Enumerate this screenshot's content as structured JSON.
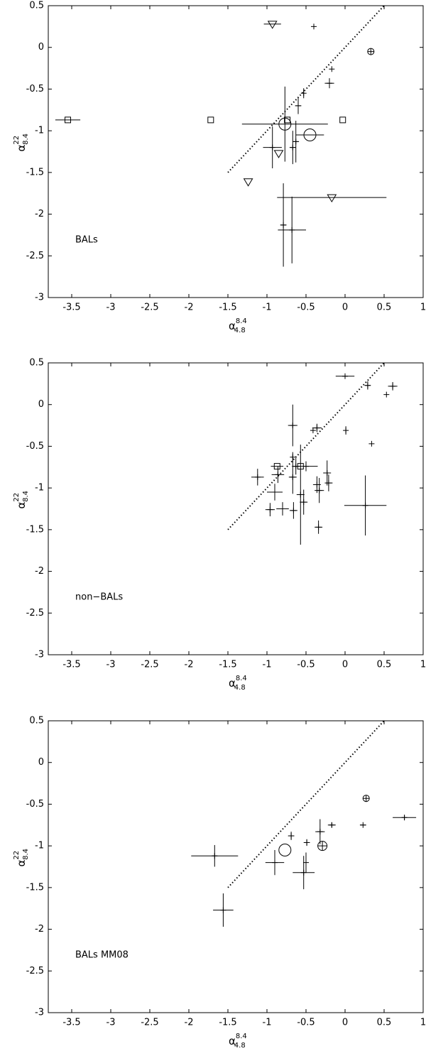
{
  "chart_data": [
    {
      "type": "scatter",
      "annotation": "BALs",
      "xlabel": {
        "symbol": "α",
        "sup": "8.4",
        "sub": "4.8"
      },
      "ylabel": {
        "symbol": "α",
        "sup": "22",
        "sub": "8.4"
      },
      "xlim": [
        -3.8,
        1
      ],
      "ylim": [
        -3,
        0.5
      ],
      "xticks": [
        -3.5,
        -3,
        -2.5,
        -2,
        -1.5,
        -1,
        -0.5,
        0,
        0.5,
        1
      ],
      "yticks": [
        -3,
        -2.5,
        -2,
        -1.5,
        -1,
        -0.5,
        0,
        0.5
      ],
      "reference_line": {
        "x": [
          -1.5,
          0.5
        ],
        "y": [
          -1.5,
          0.5
        ]
      },
      "color": "#000000",
      "points": {
        "x": [
          -3.55,
          -1.72,
          -0.03,
          -0.93,
          -0.4,
          0.33,
          -0.17,
          -0.2,
          -0.53,
          -0.6,
          -0.74,
          -0.77,
          -0.45,
          -0.63,
          -0.67,
          -0.93,
          -0.85,
          -1.24,
          -0.17,
          -0.79,
          -0.68
        ],
        "y": [
          -0.87,
          -0.87,
          -0.87,
          0.28,
          0.25,
          -0.05,
          -0.26,
          -0.43,
          -0.55,
          -0.7,
          -0.87,
          -0.92,
          -1.05,
          -1.13,
          -1.2,
          -1.2,
          -1.27,
          -1.61,
          -1.8,
          -2.13,
          -2.19
        ],
        "xerr": [
          0.16,
          null,
          null,
          0.11,
          null,
          null,
          null,
          0.06,
          null,
          0.04,
          null,
          0.55,
          0.18,
          0.04,
          0.04,
          0.12,
          null,
          null,
          0.7,
          0.04,
          0.18
        ],
        "yerr": [
          null,
          null,
          null,
          null,
          null,
          null,
          null,
          0.06,
          0.06,
          0.1,
          null,
          0.45,
          null,
          0.25,
          0.2,
          0.25,
          null,
          null,
          null,
          0.5,
          0.4
        ],
        "marker": [
          "square",
          "square",
          "square",
          "triangle",
          "plus",
          "circle_small",
          "plus",
          "plus",
          "plus",
          "plus",
          "square",
          "circle_large",
          "circle_large",
          "plus",
          "plus",
          "plus",
          "triangle",
          "triangle",
          "triangle",
          "plus",
          "plus"
        ]
      }
    },
    {
      "type": "scatter",
      "annotation": "non−BALs",
      "xlabel": {
        "symbol": "α",
        "sup": "8.4",
        "sub": "4.8"
      },
      "ylabel": {
        "symbol": "α",
        "sup": "22",
        "sub": "8.4"
      },
      "xlim": [
        -3.8,
        1
      ],
      "ylim": [
        -3,
        0.5
      ],
      "xticks": [
        -3.5,
        -3,
        -2.5,
        -2,
        -1.5,
        -1,
        -0.5,
        0,
        0.5,
        1
      ],
      "yticks": [
        -3,
        -2.5,
        -2,
        -1.5,
        -1,
        -0.5,
        0,
        0.5
      ],
      "reference_line": {
        "x": [
          -1.5,
          0.5
        ],
        "y": [
          -1.5,
          0.5
        ]
      },
      "color": "#000000",
      "points": {
        "x": [
          0,
          0.29,
          0.61,
          0.53,
          -0.67,
          -0.36,
          -0.41,
          0.01,
          0.34,
          -0.87,
          -0.67,
          -0.63,
          -0.57,
          -0.5,
          -0.23,
          -0.21,
          -0.86,
          -1.12,
          -0.67,
          -0.36,
          -0.33,
          -0.9,
          -0.57,
          -0.53,
          -0.96,
          -0.8,
          -0.66,
          -0.34,
          0.26
        ],
        "y": [
          0.34,
          0.23,
          0.22,
          0.12,
          -0.25,
          -0.28,
          -0.31,
          -0.31,
          -0.47,
          -0.74,
          -0.63,
          -0.74,
          -0.74,
          -0.74,
          -0.82,
          -0.94,
          -0.84,
          -0.87,
          -0.87,
          -0.96,
          -1.03,
          -1.05,
          -1.08,
          -1.17,
          -1.26,
          -1.25,
          -1.27,
          -1.47,
          -1.21
        ],
        "xerr": [
          0.12,
          0.04,
          0.06,
          null,
          0.06,
          0.06,
          null,
          null,
          null,
          0.08,
          null,
          0.05,
          null,
          0.15,
          0.05,
          0.05,
          0.08,
          0.08,
          0.05,
          0.05,
          0.06,
          0.1,
          0.05,
          0.05,
          0.06,
          0.08,
          0.05,
          0.05,
          0.27
        ],
        "yerr": [
          null,
          0.05,
          0.05,
          null,
          0.25,
          0.05,
          null,
          0.05,
          null,
          null,
          0.06,
          0.1,
          null,
          0.06,
          0.15,
          0.1,
          0.1,
          0.1,
          0.2,
          0.1,
          0.15,
          0.1,
          0.6,
          0.15,
          0.08,
          0.08,
          0.1,
          0.08,
          0.36
        ],
        "marker": [
          "plus",
          "plus",
          "plus",
          "plus",
          "plus",
          "plus",
          "plus",
          "plus",
          "plus",
          "square",
          "plus",
          "plus",
          "square",
          "plus",
          "plus",
          "plus",
          "plus",
          "plus",
          "plus",
          "plus",
          "plus",
          "plus",
          "plus",
          "plus",
          "plus",
          "plus",
          "plus",
          "plus",
          "plus"
        ]
      }
    },
    {
      "type": "scatter",
      "annotation": "BALs MM08",
      "xlabel": {
        "symbol": "α",
        "sup": "8.4",
        "sub": "4.8"
      },
      "ylabel": {
        "symbol": "α",
        "sup": "22",
        "sub": "8.4"
      },
      "xlim": [
        -3.8,
        1
      ],
      "ylim": [
        -3,
        0.5
      ],
      "xticks": [
        -3.5,
        -3,
        -2.5,
        -2,
        -1.5,
        -1,
        -0.5,
        0,
        0.5,
        1
      ],
      "yticks": [
        -3,
        -2.5,
        -2,
        -1.5,
        -1,
        -0.5,
        0,
        0.5
      ],
      "reference_line": {
        "x": [
          -1.5,
          0.5
        ],
        "y": [
          -1.5,
          0.5
        ]
      },
      "color": "#000000",
      "points": {
        "x": [
          0.27,
          0.76,
          0.23,
          -0.17,
          -0.32,
          -0.69,
          -0.49,
          -0.77,
          -0.29,
          -0.9,
          -0.5,
          -0.53,
          -1.56,
          -1.67
        ],
        "y": [
          -0.43,
          -0.66,
          -0.75,
          -0.75,
          -0.83,
          -0.88,
          -0.96,
          -1.05,
          -1.0,
          -1.2,
          -1.2,
          -1.32,
          -1.77,
          -1.12
        ],
        "xerr": [
          null,
          0.15,
          0.04,
          0.05,
          0.06,
          0.04,
          0.04,
          null,
          null,
          0.12,
          null,
          0.14,
          0.13,
          0.3
        ],
        "yerr": [
          null,
          0.03,
          null,
          0.03,
          0.15,
          0.05,
          0.04,
          null,
          null,
          0.15,
          0.12,
          0.2,
          0.2,
          0.13
        ],
        "marker": [
          "circle_small",
          "plus",
          "plus",
          "plus",
          "plus",
          "plus",
          "plus",
          "circle_large",
          "circle_medium",
          "plus",
          "plus",
          "plus",
          "plus",
          "plus"
        ]
      }
    }
  ]
}
